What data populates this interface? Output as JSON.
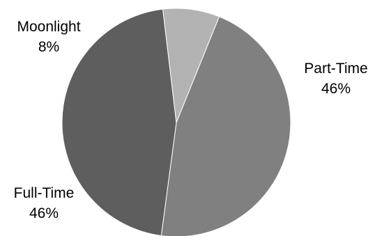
{
  "chart_data": {
    "type": "pie",
    "title": "",
    "legend": "none",
    "slices": [
      {
        "label": "Part-Time",
        "value": 46,
        "value_label": "46%",
        "color": "#808080"
      },
      {
        "label": "Full-Time",
        "value": 46,
        "value_label": "46%",
        "color": "#5e5e5e"
      },
      {
        "label": "Moonlight",
        "value": 8,
        "value_label": "8%",
        "color": "#b3b3b3"
      }
    ]
  }
}
